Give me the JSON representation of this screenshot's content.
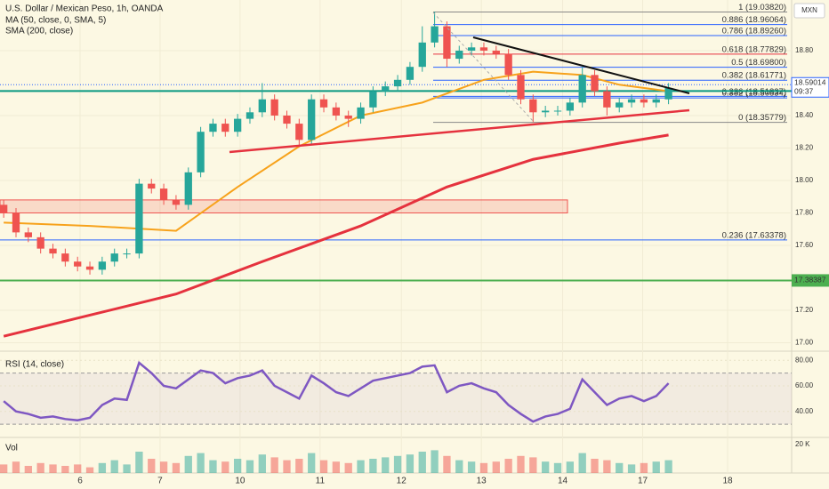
{
  "chart_data": {
    "type": "candlestick",
    "title": "U.S. Dollar / Mexican Peso, 1h, OANDA",
    "currency": "MXN",
    "xlim": [
      -0.3,
      64
    ],
    "xticks": [
      {
        "value": 6.2,
        "label": "6"
      },
      {
        "value": 12.7,
        "label": "7"
      },
      {
        "value": 19.2,
        "label": "10"
      },
      {
        "value": 25.7,
        "label": "11"
      },
      {
        "value": 32.3,
        "label": "12"
      },
      {
        "value": 38.8,
        "label": "13"
      },
      {
        "value": 45.4,
        "label": "14"
      },
      {
        "value": 51.9,
        "label": "17"
      },
      {
        "value": 58.8,
        "label": "18"
      }
    ],
    "ylim": [
      16.948,
      19.112
    ],
    "yticks": [
      {
        "value": 18.8,
        "label": "18.80"
      },
      {
        "value": 18.4,
        "label": "18.40"
      },
      {
        "value": 18.2,
        "label": "18.20"
      },
      {
        "value": 18,
        "label": "18.00"
      },
      {
        "value": 17.8,
        "label": "17.80"
      },
      {
        "value": 17.6,
        "label": "17.60"
      },
      {
        "value": 17.2,
        "label": "17.20"
      },
      {
        "value": 17,
        "label": "17.00"
      }
    ],
    "up_color": "#26a69a",
    "down_color": "#ef5350",
    "open": [
      17.85,
      17.8,
      17.68,
      17.65,
      17.58,
      17.55,
      17.5,
      17.47,
      17.45,
      17.5,
      17.55,
      17.55,
      17.98,
      17.95,
      17.88,
      17.85,
      18.05,
      18.3,
      18.35,
      18.3,
      18.38,
      18.42,
      18.5,
      18.4,
      18.35,
      18.25,
      18.5,
      18.45,
      18.4,
      18.38,
      18.45,
      18.55,
      18.58,
      18.62,
      18.7,
      18.85,
      18.95,
      18.75,
      18.8,
      18.82,
      18.8,
      18.78,
      18.65,
      18.5,
      18.42,
      18.43,
      18.43,
      18.48,
      18.65,
      18.55,
      18.45,
      18.48,
      18.5,
      18.48,
      18.5
    ],
    "high": [
      17.88,
      17.83,
      17.71,
      17.68,
      17.61,
      17.58,
      17.53,
      17.5,
      17.53,
      17.58,
      17.58,
      18.01,
      18.01,
      17.98,
      17.91,
      18.08,
      18.33,
      18.38,
      18.38,
      18.41,
      18.45,
      18.6,
      18.53,
      18.43,
      18.38,
      18.53,
      18.53,
      18.48,
      18.43,
      18.48,
      18.58,
      18.61,
      18.65,
      18.73,
      18.95,
      19.04,
      18.98,
      18.83,
      18.85,
      18.85,
      18.83,
      18.81,
      18.68,
      18.53,
      18.46,
      18.46,
      18.51,
      18.7,
      18.68,
      18.58,
      18.51,
      18.53,
      18.53,
      18.53,
      18.6
    ],
    "low": [
      17.77,
      17.65,
      17.62,
      17.55,
      17.52,
      17.47,
      17.44,
      17.42,
      17.42,
      17.47,
      17.52,
      17.52,
      17.92,
      17.85,
      17.82,
      17.82,
      18.02,
      18.27,
      18.27,
      18.27,
      18.35,
      18.39,
      18.37,
      18.32,
      18.22,
      18.22,
      18.42,
      18.37,
      18.33,
      18.35,
      18.42,
      18.52,
      18.55,
      18.59,
      18.67,
      18.82,
      18.7,
      18.72,
      18.77,
      18.77,
      18.75,
      18.62,
      18.47,
      18.36,
      18.39,
      18.4,
      18.4,
      18.45,
      18.52,
      18.4,
      18.42,
      18.45,
      18.45,
      18.45,
      18.47
    ],
    "close": [
      17.8,
      17.68,
      17.65,
      17.58,
      17.55,
      17.5,
      17.47,
      17.45,
      17.5,
      17.55,
      17.55,
      17.98,
      17.95,
      17.88,
      17.85,
      18.05,
      18.3,
      18.35,
      18.3,
      18.38,
      18.42,
      18.5,
      18.4,
      18.35,
      18.25,
      18.5,
      18.45,
      18.4,
      18.38,
      18.45,
      18.55,
      18.58,
      18.62,
      18.7,
      18.85,
      18.95,
      18.75,
      18.8,
      18.82,
      18.8,
      18.78,
      18.65,
      18.5,
      18.42,
      18.43,
      18.43,
      18.48,
      18.65,
      18.55,
      18.45,
      18.48,
      18.5,
      18.48,
      18.5,
      18.57
    ],
    "series": [
      {
        "name": "MA (50, close, 0, SMA, 5)",
        "color": "#f7a21b",
        "x": [
          0,
          7,
          14,
          19,
          24,
          29,
          34,
          39,
          43,
          47,
          50,
          54
        ],
        "values": [
          17.74,
          17.72,
          17.69,
          17.96,
          18.21,
          18.4,
          18.48,
          18.62,
          18.67,
          18.65,
          18.59,
          18.55
        ]
      },
      {
        "name": "SMA (200, close)",
        "color": "#e5323e",
        "x": [
          0,
          7,
          14,
          21,
          29,
          36,
          43,
          50,
          54
        ],
        "values": [
          17.04,
          17.17,
          17.3,
          17.5,
          17.72,
          17.96,
          18.13,
          18.23,
          18.28
        ]
      }
    ],
    "fib_levels": [
      {
        "value": 19.0382,
        "label": "1 (19.03820)",
        "color": "#888888"
      },
      {
        "value": 18.96064,
        "label": "0.886 (18.96064)",
        "color": "#2962ff"
      },
      {
        "value": 18.8926,
        "label": "0.786 (18.89260)",
        "color": "#2962ff"
      },
      {
        "value": 18.77829,
        "label": "0.618 (18.77829)",
        "color": "#e5323e"
      },
      {
        "value": 18.698,
        "label": "0.5 (18.69800)",
        "color": "#2962ff"
      },
      {
        "value": 18.61771,
        "label": "0.382 (18.61771)",
        "color": "#2962ff"
      },
      {
        "value": 18.51837,
        "label": "0.236 (18.51837)",
        "color": "#2962ff"
      },
      {
        "value": 18.50834,
        "label": "0.382 (18.50834)",
        "color": "#2962ff"
      },
      {
        "value": 18.35779,
        "label": "0 (18.35779)",
        "color": "#888888"
      },
      {
        "value": 17.63378,
        "label": "0.236 (17.63378)",
        "color": "#2962ff"
      }
    ],
    "zone": [
      17.8,
      17.88
    ],
    "current_price": 18.59014,
    "countdown": "09:37",
    "level_lines": [
      {
        "value": 18.55131,
        "color": "#089981"
      },
      {
        "value": 17.38387,
        "color": "#4caf50"
      }
    ],
    "rsi": {
      "title": "RSI (14, close)",
      "color": "#7e57c2",
      "ylim": [
        21,
        85
      ],
      "band": [
        30,
        70
      ],
      "yticks": [
        {
          "value": 80,
          "label": "80.00"
        },
        {
          "value": 60,
          "label": "60.00"
        },
        {
          "value": 40,
          "label": "40.00"
        }
      ],
      "values": [
        48,
        40,
        38,
        35,
        36,
        34,
        33,
        35,
        45,
        50,
        49,
        78,
        70,
        60,
        58,
        65,
        72,
        70,
        62,
        66,
        68,
        72,
        60,
        55,
        50,
        68,
        62,
        55,
        52,
        58,
        64,
        66,
        68,
        70,
        75,
        76,
        55,
        60,
        62,
        58,
        55,
        45,
        38,
        32,
        36,
        38,
        42,
        65,
        55,
        45,
        50,
        52,
        48,
        52,
        62
      ]
    },
    "volume": {
      "title": "Vol",
      "ylim": [
        0,
        25000
      ],
      "yticks": [
        {
          "value": 20000,
          "label": "20 K"
        }
      ],
      "values": [
        6000,
        8000,
        5000,
        7000,
        6000,
        5000,
        6000,
        4000,
        7000,
        9000,
        6000,
        15000,
        10000,
        8000,
        7000,
        12000,
        14000,
        9000,
        8000,
        10000,
        9000,
        13000,
        11000,
        9000,
        10000,
        14000,
        9000,
        8000,
        7000,
        9000,
        10000,
        11000,
        12000,
        13000,
        15000,
        16000,
        12000,
        9000,
        8000,
        7000,
        8000,
        10000,
        12000,
        11000,
        8000,
        7000,
        8000,
        14000,
        10000,
        9000,
        7000,
        6000,
        7000,
        8000,
        9000
      ]
    }
  }
}
